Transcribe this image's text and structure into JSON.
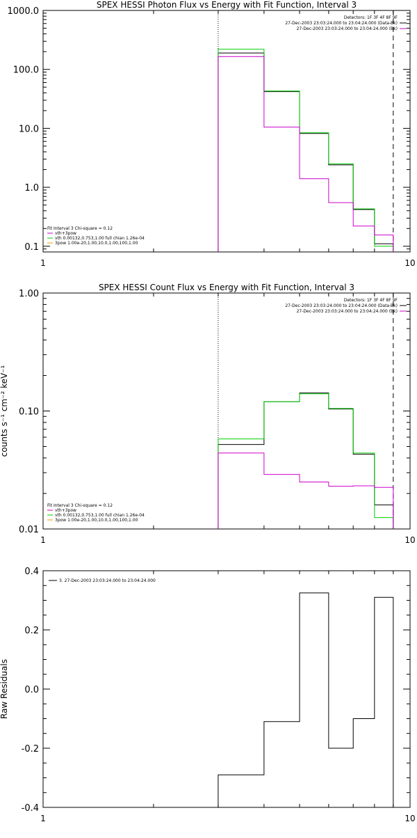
{
  "chart_data": [
    {
      "type": "line",
      "title": "SPEX HESSI Photon Flux vs Energy with Fit Function, Interval 3",
      "xlabel": "",
      "ylabel": "",
      "xscale": "log",
      "yscale": "log",
      "xlim": [
        1,
        10
      ],
      "ylim": [
        0.08,
        1000
      ],
      "x_ticks": [
        "1",
        "10"
      ],
      "y_ticks": [
        {
          "value": 0.1,
          "label": "0.1"
        },
        {
          "value": 1,
          "label": "1.0"
        },
        {
          "value": 10,
          "label": "10.0"
        },
        {
          "value": 100,
          "label": "100.0"
        },
        {
          "value": 1000,
          "label": "1000.0"
        }
      ],
      "vlines": [
        {
          "x": 3.0,
          "style": "dotted"
        },
        {
          "x": 9.0,
          "style": "dashed"
        }
      ],
      "legend_top_right": [
        {
          "text": "Detectors: 1F 3F 4F 8F 9F",
          "color": "#000000"
        },
        {
          "text": "27-Dec-2003 23:03:24.000 to 23:04:24.000 (Data-Bk)",
          "color": "#000000"
        },
        {
          "text": "27-Dec-2003 23:03:24.000 to 23:04:24.000 (Bk)",
          "color": "#cc00cc"
        }
      ],
      "legend_bottom_left": [
        {
          "text": "Fit Interval 3   Chi-square = 0.12",
          "color": "#000000"
        },
        {
          "text": "vth+3pow",
          "color": "#cc00cc"
        },
        {
          "text": "vth 0.00132,0.753,1.00  full chian 1.26e-04",
          "color": "#00cc00"
        },
        {
          "text": "3pow 1.00e-20,1.00,10.0,1.00,100,1.00",
          "color": "#ff9900"
        }
      ],
      "bin_edges": [
        3.0,
        4.0,
        5.0,
        6.0,
        7.0,
        8.0,
        9.0
      ],
      "series": [
        {
          "color": "#000000",
          "values": [
            190,
            42,
            8.2,
            2.4,
            0.42,
            0.11
          ]
        },
        {
          "color": "#00cc00",
          "values": [
            220,
            43,
            8.4,
            2.5,
            0.43,
            0.1
          ]
        },
        {
          "color": "#cc00cc",
          "values": [
            165,
            10.5,
            1.4,
            0.55,
            0.22,
            0.155
          ]
        }
      ]
    },
    {
      "type": "line",
      "title": "SPEX HESSI Count Flux vs Energy with Fit Function, Interval 3",
      "xlabel": "",
      "ylabel": "counts s⁻¹ cm⁻² keV⁻¹",
      "xscale": "log",
      "yscale": "log",
      "xlim": [
        1,
        10
      ],
      "ylim": [
        0.01,
        1.0
      ],
      "x_ticks": [
        "1",
        "10"
      ],
      "y_ticks": [
        {
          "value": 0.01,
          "label": "0.01"
        },
        {
          "value": 0.1,
          "label": "0.10"
        },
        {
          "value": 1.0,
          "label": "1.00"
        }
      ],
      "vlines": [
        {
          "x": 3.0,
          "style": "dotted"
        },
        {
          "x": 9.0,
          "style": "dashed"
        }
      ],
      "legend_top_right": [
        {
          "text": "Detectors: 1F 3F 4F 8F 9F",
          "color": "#000000"
        },
        {
          "text": "27-Dec-2003 23:03:24.000 to 23:04:24.000 (Data-Bk)",
          "color": "#000000"
        },
        {
          "text": "27-Dec-2003 23:03:24.000 to 23:04:24.000 (Bk)",
          "color": "#cc00cc"
        }
      ],
      "legend_bottom_left": [
        {
          "text": "Fit Interval 3   Chi-square = 0.12",
          "color": "#000000"
        },
        {
          "text": "vth+3pow",
          "color": "#cc00cc"
        },
        {
          "text": "vth 0.00132,0.753,1.00  full chian 1.26e-04",
          "color": "#00cc00"
        },
        {
          "text": "3pow 1.00e-20,1.00,10.0,1.00,100,1.00",
          "color": "#ff9900"
        }
      ],
      "bin_edges": [
        3.0,
        4.0,
        5.0,
        6.0,
        7.0,
        8.0,
        9.0
      ],
      "series": [
        {
          "color": "#000000",
          "values": [
            0.052,
            0.12,
            0.142,
            0.104,
            0.043,
            0.016
          ]
        },
        {
          "color": "#00cc00",
          "values": [
            0.058,
            0.12,
            0.14,
            0.105,
            0.044,
            0.0125
          ]
        },
        {
          "color": "#cc00cc",
          "values": [
            0.044,
            0.029,
            0.025,
            0.023,
            0.0232,
            0.0225
          ]
        }
      ]
    },
    {
      "type": "line",
      "title": "",
      "xlabel": "",
      "ylabel": "Raw Residuals",
      "xscale": "log",
      "yscale": "linear",
      "xlim": [
        1,
        10
      ],
      "ylim": [
        -0.4,
        0.4
      ],
      "x_ticks": [
        "1",
        "10"
      ],
      "y_ticks": [
        {
          "value": -0.4,
          "label": "-0.4"
        },
        {
          "value": -0.2,
          "label": "-0.2"
        },
        {
          "value": 0.0,
          "label": "0.0"
        },
        {
          "value": 0.2,
          "label": "0.2"
        },
        {
          "value": 0.4,
          "label": "0.4"
        }
      ],
      "vlines": [],
      "legend_top_right": [],
      "legend_bottom_left": [],
      "legend_top_left": [
        {
          "text": "3. 27-Dec-2003 23:03:24.000 to 23:04:24.000",
          "color": "#000000"
        }
      ],
      "bin_edges": [
        3.0,
        4.0,
        5.0,
        6.0,
        7.0,
        8.0,
        9.0
      ],
      "series": [
        {
          "color": "#000000",
          "values": [
            -0.29,
            -0.11,
            0.325,
            -0.2,
            -0.1,
            0.31
          ]
        }
      ]
    }
  ]
}
